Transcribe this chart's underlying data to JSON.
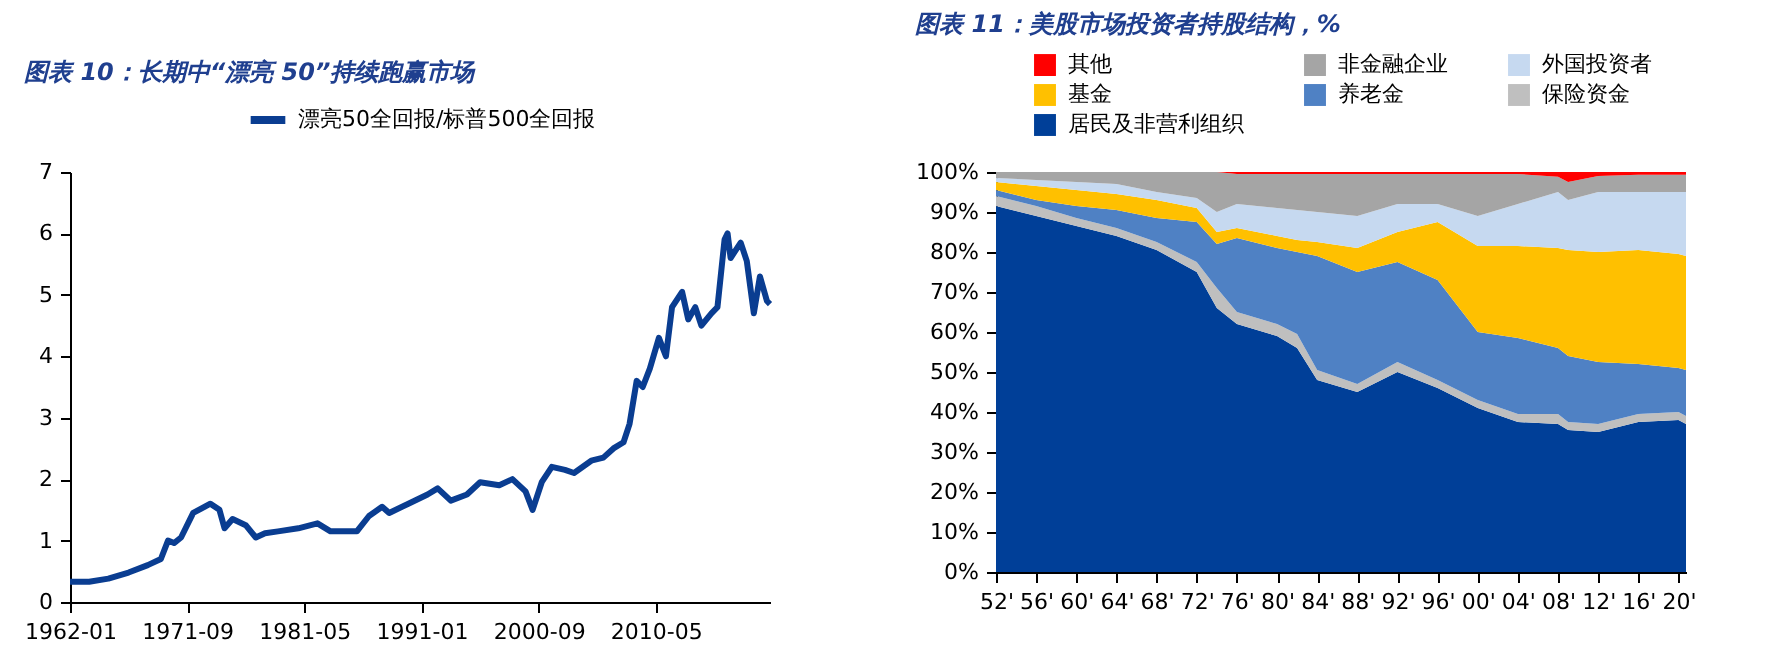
{
  "chart_data": [
    {
      "type": "line",
      "title": "图表 10：长期中“漂亮 50”持续跑赢市场",
      "legend": "top",
      "grid": false,
      "marker": "none",
      "line_style": "solid",
      "x": [
        "1962-01",
        "1963-08",
        "1965-03",
        "1966-11",
        "1968-06",
        "1969-07",
        "1970-02",
        "1970-08",
        "1971-03",
        "1972-03",
        "1973-08",
        "1974-05",
        "1974-10",
        "1975-06",
        "1976-07",
        "1977-05",
        "1978-02",
        "1979-03",
        "1980-11",
        "1982-06",
        "1983-07",
        "1985-09",
        "1986-09",
        "1987-10",
        "1988-05",
        "1989-12",
        "1991-07",
        "1992-05",
        "1993-06",
        "1994-10",
        "1995-11",
        "1997-06",
        "1998-07",
        "1999-08",
        "2000-03",
        "2000-12",
        "2001-10",
        "2002-11",
        "2003-08",
        "2005-01",
        "2006-01",
        "2006-11",
        "2007-09",
        "2008-03",
        "2008-10",
        "2009-04",
        "2009-11",
        "2010-08",
        "2011-03",
        "2011-09",
        "2012-07",
        "2013-01",
        "2013-08",
        "2014-02",
        "2014-12",
        "2015-06",
        "2016-01",
        "2016-04",
        "2016-07",
        "2017-05",
        "2017-11",
        "2018-06",
        "2018-12",
        "2019-07",
        "2019-10"
      ],
      "series": [
        {
          "name": "漂亮50全回报/标普500全回报",
          "color": "#0a3d91",
          "values": [
            0.33,
            0.33,
            0.38,
            0.48,
            0.6,
            0.7,
            1.0,
            0.96,
            1.05,
            1.45,
            1.6,
            1.5,
            1.2,
            1.35,
            1.25,
            1.05,
            1.12,
            1.15,
            1.2,
            1.28,
            1.15,
            1.15,
            1.4,
            1.55,
            1.45,
            1.6,
            1.75,
            1.85,
            1.65,
            1.75,
            1.95,
            1.9,
            2.0,
            1.8,
            1.5,
            1.95,
            2.2,
            2.15,
            2.1,
            2.3,
            2.35,
            2.5,
            2.6,
            2.9,
            3.6,
            3.5,
            3.8,
            4.3,
            4.0,
            4.8,
            5.05,
            4.6,
            4.8,
            4.5,
            4.7,
            4.8,
            5.9,
            6.0,
            5.6,
            5.85,
            5.55,
            4.7,
            5.3,
            4.9,
            4.85
          ]
        }
      ],
      "xlim": [
        "1962-01",
        "2019-10"
      ],
      "xticks": [
        "1962-01",
        "1971-09",
        "1981-05",
        "1991-01",
        "2000-09",
        "2010-05"
      ],
      "ylim": [
        0,
        7
      ],
      "yticks": [
        0,
        1,
        2,
        3,
        4,
        5,
        6,
        7
      ]
    },
    {
      "type": "area",
      "stacked": true,
      "title": "图表 11：美股市场投资者持股结构，%",
      "legend": "top",
      "grid": false,
      "x": [
        "1952",
        "1956",
        "1960",
        "1964",
        "1968",
        "1972",
        "1974",
        "1976",
        "1980",
        "1982",
        "1984",
        "1988",
        "1992",
        "1996",
        "2000",
        "2004",
        "2008",
        "2009",
        "2012",
        "2016",
        "2020",
        "2020-10"
      ],
      "series": [
        {
          "name": "居民及非营利组织",
          "color": "#003f98",
          "values": [
            91.5,
            89,
            86.5,
            84,
            80.5,
            75,
            66,
            62,
            59,
            56,
            48,
            45,
            50,
            46,
            41,
            37.5,
            37,
            35.5,
            35,
            37.5,
            38,
            37
          ]
        },
        {
          "name": "保险资金",
          "color": "#bfbfbf",
          "values": [
            2.5,
            2.5,
            2,
            2,
            2,
            2.5,
            5,
            3,
            3,
            3.5,
            2.5,
            2,
            2.5,
            2,
            2,
            2,
            2.5,
            2,
            2,
            2,
            2,
            2
          ]
        },
        {
          "name": "养老金",
          "color": "#4f81c4",
          "values": [
            1.5,
            1.5,
            3,
            4.5,
            6,
            10,
            11,
            18.5,
            19,
            20.5,
            28.5,
            28,
            25,
            25,
            17,
            19,
            16.5,
            16.5,
            15.5,
            12.5,
            11,
            11.5
          ]
        },
        {
          "name": "基金",
          "color": "#ffc000",
          "values": [
            2,
            3.5,
            4,
            4,
            4.5,
            3.5,
            3,
            2.5,
            3,
            3,
            3.5,
            6,
            7.5,
            14.5,
            21.5,
            23,
            25,
            26.5,
            27.5,
            28.5,
            28.5,
            28.5
          ]
        },
        {
          "name": "外国投资者",
          "color": "#c6d9f0",
          "values": [
            1,
            1.5,
            2,
            2.5,
            2,
            2.5,
            5,
            6,
            7,
            7.5,
            7.5,
            8,
            7,
            4.5,
            7.5,
            10.5,
            14,
            12.5,
            15,
            14.5,
            15.5,
            16
          ]
        },
        {
          "name": "非金融企业",
          "color": "#a5a5a5",
          "values": [
            1.5,
            2,
            2.5,
            3,
            5,
            6.5,
            10,
            7.5,
            8.5,
            9,
            9.5,
            10.5,
            7.5,
            7.5,
            10.5,
            7.5,
            3.8,
            4.5,
            4,
            4.3,
            4.3,
            4.3
          ]
        },
        {
          "name": "其他",
          "color": "#ff0000",
          "values": [
            0,
            0,
            0,
            0,
            0,
            0,
            0,
            0.5,
            0.5,
            0.5,
            0.5,
            0.5,
            0.5,
            0.5,
            0.5,
            0.5,
            1.2,
            2.5,
            1,
            0.7,
            0.7,
            0.7
          ]
        }
      ],
      "xlim": [
        "1952",
        "2020-10"
      ],
      "xticks": [
        {
          "value": "1952",
          "label": "52'"
        },
        {
          "value": "1956",
          "label": "56'"
        },
        {
          "value": "1960",
          "label": "60'"
        },
        {
          "value": "1964",
          "label": "64'"
        },
        {
          "value": "1968",
          "label": "68'"
        },
        {
          "value": "1972",
          "label": "72'"
        },
        {
          "value": "1976",
          "label": "76'"
        },
        {
          "value": "1980",
          "label": "80'"
        },
        {
          "value": "1984",
          "label": "84'"
        },
        {
          "value": "1988",
          "label": "88'"
        },
        {
          "value": "1992",
          "label": "92'"
        },
        {
          "value": "1996",
          "label": "96'"
        },
        {
          "value": "2000",
          "label": "00'"
        },
        {
          "value": "2004",
          "label": "04'"
        },
        {
          "value": "2008",
          "label": "08'"
        },
        {
          "value": "2012",
          "label": "12'"
        },
        {
          "value": "2016",
          "label": "16'"
        },
        {
          "value": "2020",
          "label": "20'"
        }
      ],
      "ylim": [
        0,
        100
      ],
      "yticks": [
        {
          "value": 0,
          "label": "0%"
        },
        {
          "value": 10,
          "label": "10%"
        },
        {
          "value": 20,
          "label": "20%"
        },
        {
          "value": 30,
          "label": "30%"
        },
        {
          "value": 40,
          "label": "40%"
        },
        {
          "value": 50,
          "label": "50%"
        },
        {
          "value": 60,
          "label": "60%"
        },
        {
          "value": 70,
          "label": "70%"
        },
        {
          "value": 80,
          "label": "80%"
        },
        {
          "value": 90,
          "label": "90%"
        },
        {
          "value": 100,
          "label": "100%"
        }
      ]
    }
  ]
}
